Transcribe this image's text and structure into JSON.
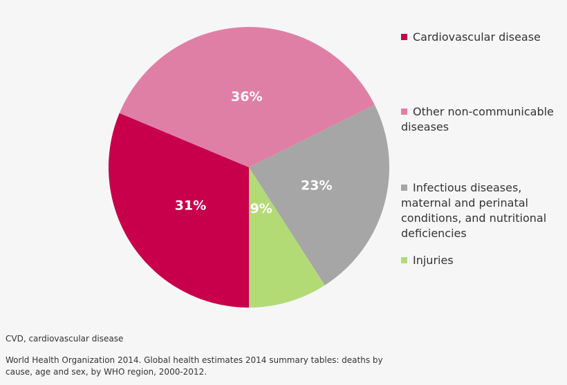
{
  "chart_data": {
    "type": "pie",
    "title": "",
    "slices": [
      {
        "label": "Cardiovascular disease",
        "value": 31,
        "display": "31%",
        "color": "#c8004c"
      },
      {
        "label": "Other non-communicable diseases",
        "value": 36,
        "display": "36%",
        "color": "#e07fa5"
      },
      {
        "label": "Infectious diseases, maternal and perinatal conditions, and nutritional deficiencies",
        "value": 23,
        "display": "23%",
        "color": "#a6a6a6"
      },
      {
        "label": "Injuries",
        "value": 9,
        "display": "9%",
        "color": "#b2db76"
      }
    ],
    "legend_placement": "right"
  },
  "footnotes": {
    "abbreviation": "CVD, cardiovascular disease",
    "source": "World Health Organization 2014. Global health estimates 2014 summary tables: deaths by cause, age and sex, by WHO region, 2000-2012."
  }
}
